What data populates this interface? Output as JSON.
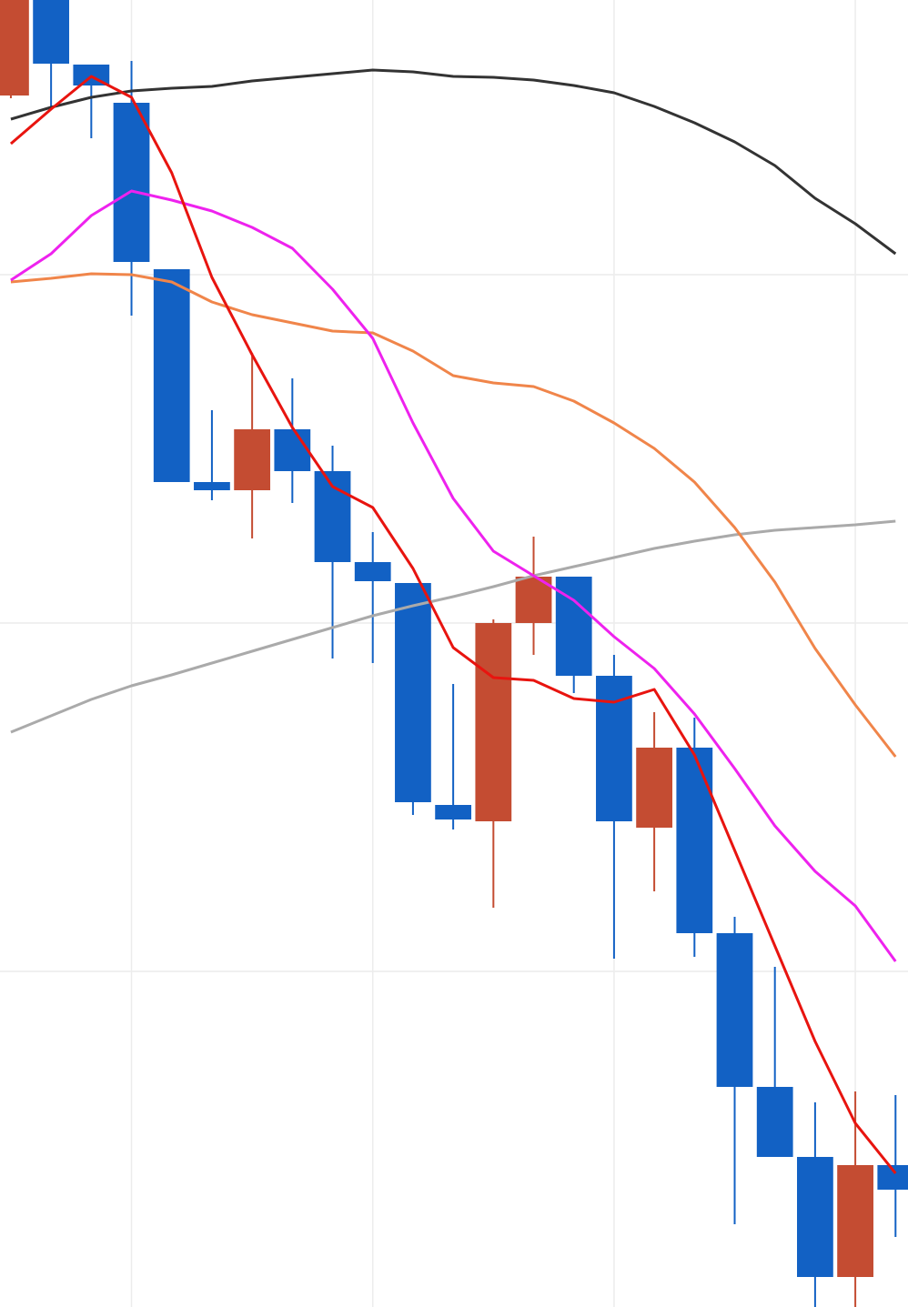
{
  "chart_data": {
    "type": "candlestick",
    "x": [
      0,
      1,
      2,
      3,
      4,
      5,
      6,
      7,
      8,
      9,
      10,
      11,
      12,
      13,
      14,
      15,
      16,
      17,
      18,
      19,
      20,
      21,
      22
    ],
    "open": [
      1332,
      1447,
      1366,
      1324,
      1141,
      907,
      898,
      965,
      919,
      819,
      796,
      552,
      534,
      752,
      803,
      694,
      527,
      615,
      411,
      242,
      165,
      33,
      156
    ],
    "high": [
      1457,
      1447,
      1366,
      1370,
      1141,
      986,
      1049,
      1021,
      947,
      852,
      796,
      685,
      756,
      847,
      803,
      717,
      654,
      648,
      429,
      374,
      225,
      237,
      233
    ],
    "low": [
      1329,
      1317,
      1285,
      1090,
      907,
      887,
      845,
      884,
      713,
      708,
      541,
      525,
      439,
      717,
      675,
      383,
      457,
      385,
      91,
      165,
      0,
      0,
      77
    ],
    "close": [
      1457,
      1367,
      1343,
      1149,
      907,
      898,
      965,
      919,
      819,
      798,
      555,
      536,
      752,
      803,
      694,
      534,
      615,
      411,
      242,
      165,
      33,
      156,
      129
    ],
    "up_color": "#c44c32",
    "down_color": "#1261c4",
    "lines": [
      {
        "color": "#333333",
        "values": [
          1306,
          1319,
          1330,
          1337,
          1340,
          1342,
          1348,
          1352,
          1356,
          1360,
          1358,
          1353,
          1352,
          1349,
          1343,
          1335,
          1320,
          1302,
          1281,
          1255,
          1219,
          1191,
          1158
        ]
      },
      {
        "color": "#aaaaaa",
        "values": [
          632,
          650,
          668,
          683,
          695,
          708,
          721,
          734,
          747,
          760,
          771,
          781,
          792,
          804,
          814,
          824,
          834,
          842,
          849,
          854,
          857,
          860,
          864
        ]
      },
      {
        "color": "#f0854a",
        "values": [
          1127,
          1131,
          1136,
          1135,
          1127,
          1105,
          1091,
          1082,
          1073,
          1071,
          1051,
          1024,
          1016,
          1012,
          996,
          972,
          944,
          907,
          857,
          797,
          724,
          662,
          605
        ]
      },
      {
        "color": "#ee22ee",
        "values": [
          1129,
          1158,
          1200,
          1227,
          1217,
          1205,
          1187,
          1164,
          1119,
          1065,
          972,
          889,
          831,
          804,
          777,
          737,
          702,
          652,
          592,
          529,
          479,
          441,
          380
        ]
      },
      {
        "color": "#e8140f",
        "values": [
          1279,
          1317,
          1353,
          1330,
          1247,
          1132,
          1047,
          967,
          902,
          879,
          812,
          725,
          692,
          689,
          669,
          665,
          679,
          607,
          502,
          397,
          292,
          202,
          147
        ]
      }
    ],
    "xlim": [
      -0.27,
      22.31
    ],
    "ylim": [
      0,
      1437
    ],
    "xticks": [
      3,
      9,
      15,
      21
    ],
    "yticks": [
      369,
      752,
      1135
    ],
    "grid": true
  }
}
